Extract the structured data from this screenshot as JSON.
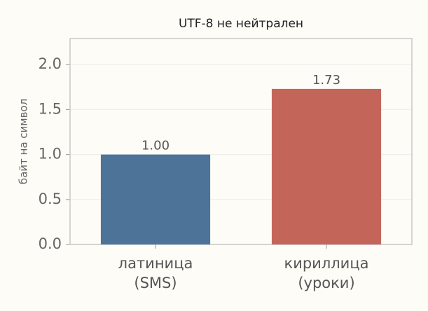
{
  "chart_data": {
    "type": "bar",
    "title": "UTF-8 не нейтрален",
    "y_label": "байт на символ",
    "categories": [
      "латиница\n(SMS)",
      "кириллица\n(уроки)"
    ],
    "series": [
      {
        "name": "байт на символ",
        "colors": [
          "#4e7398",
          "#c4655a"
        ],
        "values": [
          1.0,
          1.73
        ],
        "value_labels": [
          "1.00",
          "1.73"
        ]
      }
    ],
    "ylim": [
      0,
      2.29
    ],
    "yticks": [
      {
        "value": 0,
        "label": "0.0"
      },
      0.5,
      {
        "value": 1,
        "label": "1.0"
      },
      1.5,
      {
        "value": 2,
        "label": "2.0"
      }
    ],
    "grid": true
  }
}
